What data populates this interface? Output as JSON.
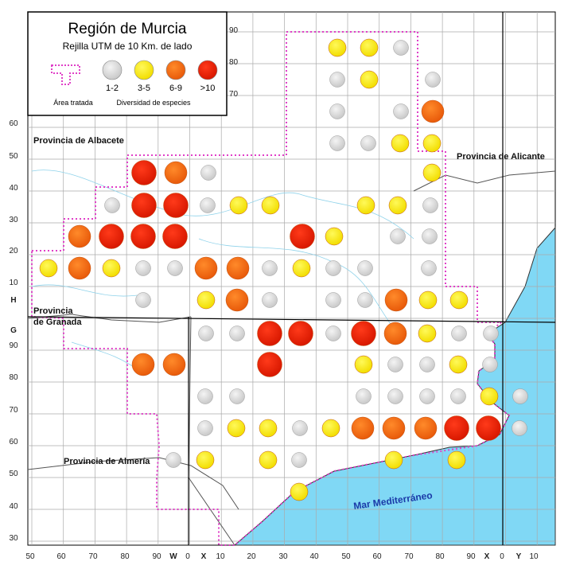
{
  "title": "Región de Murcia",
  "subtitle": "Rejilla UTM de 10 Km. de lado",
  "legend": {
    "area_label": "Área tratada",
    "diversity_label": "Diversidad de especies",
    "classes": [
      "1-2",
      "3-5",
      "6-9",
      ">10"
    ]
  },
  "labels": {
    "albacete": "Provincia de Albacete",
    "alicante": "Provincia de Alicante",
    "granada_1": "Provincia",
    "granada_2": "de Granada",
    "almeria": "Provincia de Almería",
    "sea": "Mar Mediterráneo"
  },
  "bottom_axis": [
    "50",
    "60",
    "70",
    "80",
    "90",
    "W",
    "0",
    "X",
    "10",
    "20",
    "30",
    "40",
    "50",
    "60",
    "70",
    "80",
    "90",
    "X",
    "0",
    "Y",
    "10"
  ],
  "left_axis": [
    "60",
    "50",
    "40",
    "30",
    "20",
    "10",
    "H",
    "G",
    "90",
    "80",
    "70",
    "60",
    "50",
    "40",
    "30"
  ],
  "inner_axis": [
    "90",
    "80",
    "70"
  ]
}
